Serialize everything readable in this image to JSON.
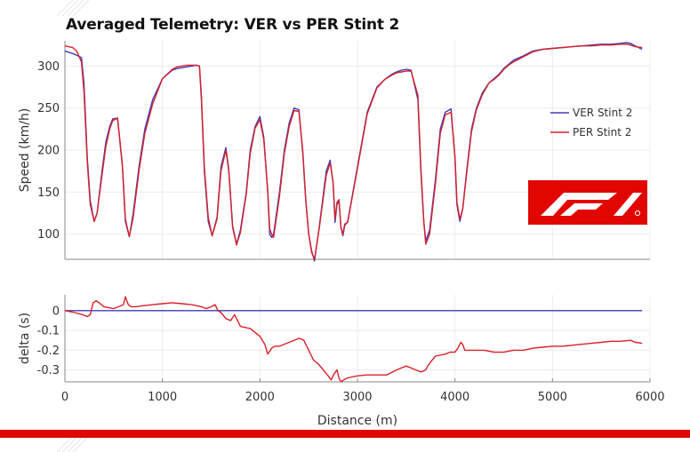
{
  "colors": {
    "ver": "#3d3dbd",
    "per": "#d8202a",
    "brand": "#e10600",
    "axis": "#888888",
    "grid": "#ececec"
  },
  "logo": {
    "icon": "f1-logo-icon",
    "text": "F1"
  },
  "chart_data": [
    {
      "type": "line",
      "title": "Averaged Telemetry: VER vs PER Stint 2",
      "xlabel": "",
      "ylabel": "Speed (km/h)",
      "xlim": [
        0,
        6000
      ],
      "ylim": [
        70,
        330
      ],
      "yticks": [
        100,
        150,
        200,
        250,
        300
      ],
      "grid": true,
      "legend_position": "right",
      "series": [
        {
          "name": "VER Stint 2",
          "color": "#3d3dbd",
          "x": [
            0,
            100,
            170,
            195,
            230,
            260,
            300,
            330,
            380,
            420,
            460,
            490,
            540,
            590,
            620,
            660,
            700,
            760,
            820,
            900,
            1000,
            1100,
            1150,
            1250,
            1350,
            1380,
            1400,
            1430,
            1470,
            1510,
            1560,
            1600,
            1650,
            1680,
            1720,
            1760,
            1800,
            1860,
            1900,
            1950,
            2000,
            2040,
            2080,
            2100,
            2120,
            2140,
            2200,
            2250,
            2300,
            2350,
            2400,
            2440,
            2470,
            2500,
            2530,
            2560,
            2610,
            2680,
            2720,
            2750,
            2770,
            2790,
            2810,
            2830,
            2850,
            2870,
            2900,
            3000,
            3100,
            3200,
            3280,
            3350,
            3400,
            3450,
            3500,
            3550,
            3620,
            3650,
            3680,
            3700,
            3740,
            3800,
            3850,
            3900,
            3960,
            4000,
            4020,
            4050,
            4080,
            4120,
            4170,
            4220,
            4280,
            4350,
            4400,
            4450,
            4500,
            4550,
            4600,
            4700,
            4800,
            4900,
            5000,
            5100,
            5200,
            5300,
            5400,
            5500,
            5600,
            5700,
            5760,
            5800,
            5850,
            5920
          ],
          "values": [
            318,
            314,
            310,
            280,
            190,
            140,
            115,
            125,
            175,
            210,
            228,
            237,
            238,
            180,
            115,
            97,
            125,
            180,
            225,
            260,
            285,
            295,
            297,
            299,
            301,
            300,
            260,
            175,
            115,
            98,
            120,
            180,
            203,
            178,
            110,
            88,
            105,
            150,
            200,
            228,
            240,
            215,
            150,
            100,
            96,
            100,
            150,
            200,
            232,
            250,
            248,
            195,
            140,
            100,
            80,
            68,
            110,
            175,
            188,
            160,
            114,
            135,
            140,
            108,
            98,
            110,
            115,
            180,
            245,
            275,
            284,
            290,
            293,
            295,
            296,
            295,
            260,
            175,
            115,
            92,
            105,
            165,
            225,
            245,
            249,
            190,
            135,
            115,
            130,
            175,
            225,
            250,
            268,
            280,
            285,
            290,
            297,
            302,
            307,
            312,
            318,
            320,
            321,
            322,
            323,
            324,
            325,
            326,
            326,
            327,
            328,
            327,
            324,
            320
          ]
        },
        {
          "name": "PER Stint 2",
          "color": "#d8202a",
          "x": [
            0,
            80,
            120,
            170,
            195,
            230,
            260,
            300,
            330,
            380,
            420,
            460,
            490,
            540,
            590,
            620,
            660,
            700,
            760,
            820,
            900,
            1000,
            1100,
            1150,
            1250,
            1350,
            1380,
            1400,
            1430,
            1470,
            1510,
            1560,
            1600,
            1650,
            1680,
            1720,
            1760,
            1800,
            1860,
            1900,
            1950,
            2000,
            2040,
            2080,
            2100,
            2120,
            2140,
            2200,
            2250,
            2300,
            2350,
            2400,
            2440,
            2470,
            2500,
            2530,
            2560,
            2610,
            2680,
            2720,
            2750,
            2770,
            2790,
            2810,
            2830,
            2850,
            2870,
            2900,
            3000,
            3100,
            3200,
            3280,
            3350,
            3400,
            3450,
            3500,
            3550,
            3620,
            3650,
            3680,
            3700,
            3740,
            3800,
            3850,
            3900,
            3960,
            4000,
            4020,
            4050,
            4080,
            4120,
            4170,
            4220,
            4280,
            4350,
            4400,
            4450,
            4500,
            4550,
            4600,
            4700,
            4800,
            4900,
            5000,
            5100,
            5200,
            5300,
            5400,
            5500,
            5600,
            5700,
            5760,
            5800,
            5850,
            5920
          ],
          "values": [
            324,
            322,
            318,
            305,
            270,
            185,
            135,
            115,
            125,
            170,
            205,
            225,
            235,
            238,
            182,
            118,
            97,
            120,
            175,
            220,
            255,
            285,
            296,
            299,
            301,
            301,
            300,
            265,
            180,
            120,
            98,
            118,
            175,
            200,
            176,
            108,
            87,
            102,
            148,
            196,
            226,
            236,
            212,
            152,
            106,
            100,
            96,
            145,
            196,
            228,
            247,
            246,
            198,
            140,
            100,
            78,
            70,
            108,
            170,
            185,
            162,
            118,
            138,
            141,
            108,
            100,
            112,
            114,
            178,
            243,
            274,
            284,
            289,
            292,
            293,
            294,
            294,
            265,
            180,
            115,
            88,
            100,
            160,
            220,
            242,
            245,
            192,
            138,
            118,
            130,
            172,
            222,
            248,
            266,
            280,
            284,
            289,
            296,
            301,
            305,
            311,
            317,
            320,
            321,
            322,
            323,
            324,
            324,
            325,
            325,
            326,
            326,
            325,
            323,
            322
          ]
        }
      ]
    },
    {
      "type": "line",
      "title": "",
      "xlabel": "Distance (m)",
      "ylabel": "delta (s)",
      "xlim": [
        0,
        6000
      ],
      "ylim": [
        -0.36,
        0.08
      ],
      "yticks": [
        0,
        -0.1,
        -0.2,
        -0.3
      ],
      "ytick_labels": [
        "0",
        "-0.1",
        "-0.2",
        "-0.3"
      ],
      "xticks": [
        0,
        1000,
        2000,
        3000,
        4000,
        5000,
        6000
      ],
      "grid": true,
      "series": [
        {
          "name": "VER Stint 2",
          "color": "#3d3dbd",
          "x": [
            0,
            5920
          ],
          "values": [
            0,
            0
          ]
        },
        {
          "name": "PER Stint 2",
          "color": "#d8202a",
          "x": [
            0,
            100,
            180,
            230,
            260,
            290,
            320,
            350,
            400,
            500,
            600,
            620,
            650,
            680,
            720,
            800,
            900,
            1000,
            1100,
            1200,
            1300,
            1400,
            1450,
            1500,
            1540,
            1570,
            1600,
            1650,
            1700,
            1740,
            1780,
            1800,
            1850,
            1900,
            1950,
            2000,
            2050,
            2080,
            2120,
            2150,
            2200,
            2300,
            2400,
            2450,
            2500,
            2550,
            2600,
            2650,
            2700,
            2730,
            2760,
            2790,
            2810,
            2830,
            2860,
            2900,
            3000,
            3100,
            3200,
            3300,
            3400,
            3450,
            3500,
            3550,
            3600,
            3650,
            3700,
            3720,
            3750,
            3800,
            3900,
            3950,
            4000,
            4030,
            4060,
            4080,
            4100,
            4200,
            4300,
            4400,
            4500,
            4600,
            4700,
            4800,
            4900,
            5000,
            5100,
            5200,
            5300,
            5400,
            5500,
            5600,
            5700,
            5800,
            5850,
            5920
          ],
          "values": [
            0.0,
            -0.01,
            -0.02,
            -0.03,
            -0.02,
            0.04,
            0.05,
            0.04,
            0.02,
            0.01,
            0.03,
            0.07,
            0.03,
            0.02,
            0.02,
            0.025,
            0.03,
            0.035,
            0.04,
            0.035,
            0.03,
            0.02,
            0.01,
            0.02,
            0.03,
            0.0,
            -0.01,
            -0.04,
            -0.05,
            -0.02,
            -0.06,
            -0.08,
            -0.085,
            -0.09,
            -0.11,
            -0.13,
            -0.17,
            -0.22,
            -0.19,
            -0.18,
            -0.18,
            -0.16,
            -0.14,
            -0.15,
            -0.2,
            -0.25,
            -0.27,
            -0.3,
            -0.33,
            -0.35,
            -0.32,
            -0.3,
            -0.34,
            -0.36,
            -0.35,
            -0.34,
            -0.33,
            -0.325,
            -0.325,
            -0.325,
            -0.3,
            -0.29,
            -0.28,
            -0.29,
            -0.3,
            -0.31,
            -0.3,
            -0.28,
            -0.26,
            -0.23,
            -0.22,
            -0.21,
            -0.21,
            -0.19,
            -0.16,
            -0.17,
            -0.2,
            -0.2,
            -0.2,
            -0.21,
            -0.21,
            -0.2,
            -0.2,
            -0.19,
            -0.185,
            -0.18,
            -0.18,
            -0.175,
            -0.17,
            -0.165,
            -0.16,
            -0.155,
            -0.155,
            -0.15,
            -0.16,
            -0.165
          ]
        }
      ]
    }
  ]
}
